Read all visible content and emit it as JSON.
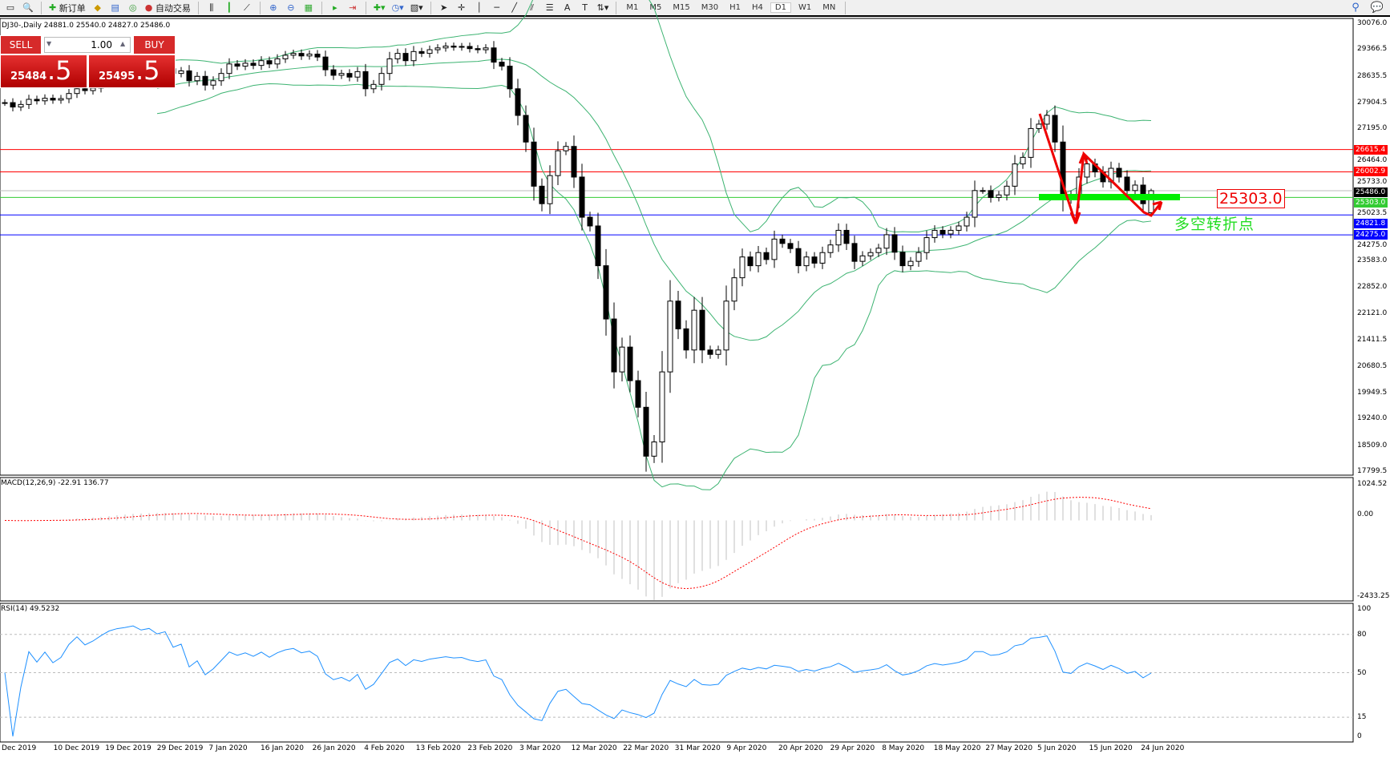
{
  "toolbar": {
    "new_order": "新订单",
    "auto_trading": "自动交易",
    "timeframes": [
      "M1",
      "M5",
      "M15",
      "M30",
      "H1",
      "H4",
      "D1",
      "W1",
      "MN"
    ],
    "active_timeframe": "D1"
  },
  "chart": {
    "title": "DJ30-,Daily  24881.0 25540.0 24827.0 25486.0",
    "symbol": "DJ30-",
    "period": "Daily"
  },
  "trade_panel": {
    "sell_label": "SELL",
    "buy_label": "BUY",
    "lot": "1.00",
    "sell_main": "25484",
    "sell_frac": ".5",
    "buy_main": "25495",
    "buy_frac": ".5"
  },
  "price_axis": [
    "30076.0",
    "29366.5",
    "28635.5",
    "27904.5",
    "27195.0",
    "26464.0",
    "25733.0",
    "25023.5",
    "24275.0",
    "23583.0",
    "22852.0",
    "22121.0",
    "21411.5",
    "20680.5",
    "19949.5",
    "19240.0",
    "18509.0",
    "17799.5"
  ],
  "levels": [
    {
      "price": "26615.4",
      "color": "#ff0000"
    },
    {
      "price": "26002.9",
      "color": "#ff0000"
    },
    {
      "price": "25486.0",
      "color": "#000000"
    },
    {
      "price": "25303.0",
      "color": "#33cc33"
    },
    {
      "price": "24821.8",
      "color": "#0000ff"
    },
    {
      "price": "24275.0",
      "color": "#0000ff"
    }
  ],
  "annotation": {
    "level_label": "25303.0",
    "note": "多空转折点"
  },
  "macd": {
    "label": "MACD(12,26,9) -22.91 136.77",
    "max": "1024.52",
    "zero": "0.00",
    "min": "-2433.25"
  },
  "rsi": {
    "label": "RSI(14) 49.5232",
    "ticks": [
      "100",
      "80",
      "50",
      "15",
      "0"
    ]
  },
  "dates": [
    "Dec 2019",
    "10 Dec 2019",
    "19 Dec 2019",
    "29 Dec 2019",
    "7 Jan 2020",
    "16 Jan 2020",
    "26 Jan 2020",
    "4 Feb 2020",
    "13 Feb 2020",
    "23 Feb 2020",
    "3 Mar 2020",
    "12 Mar 2020",
    "22 Mar 2020",
    "31 Mar 2020",
    "9 Apr 2020",
    "20 Apr 2020",
    "29 Apr 2020",
    "8 May 2020",
    "18 May 2020",
    "27 May 2020",
    "5 Jun 2020",
    "15 Jun 2020",
    "24 Jun 2020"
  ],
  "chart_data": {
    "type": "candlestick",
    "ylim": [
      17799.5,
      30076.0
    ],
    "closes": [
      27900,
      27780,
      27850,
      27990,
      27950,
      28020,
      27970,
      28010,
      28150,
      28280,
      28230,
      28300,
      28420,
      28560,
      28650,
      28700,
      28770,
      28740,
      28800,
      28760,
      28830,
      28700,
      28770,
      28500,
      28620,
      28380,
      28500,
      28700,
      28960,
      28900,
      28980,
      28920,
      29050,
      28960,
      29100,
      29200,
      29250,
      29180,
      29230,
      29150,
      28800,
      28650,
      28700,
      28600,
      28750,
      28280,
      28400,
      28700,
      29100,
      29250,
      29050,
      29300,
      29250,
      29350,
      29400,
      29450,
      29420,
      29440,
      29380,
      29350,
      29400,
      29010,
      28900,
      28280,
      27550,
      26820,
      25610,
      25130,
      25900,
      26580,
      26700,
      25860,
      24760,
      24520,
      23430,
      21970,
      20520,
      21200,
      20280,
      19550,
      18210,
      18600,
      20520,
      22460,
      21700,
      21120,
      22210,
      21120,
      21000,
      21120,
      22460,
      23100,
      23670,
      23430,
      23790,
      23600,
      24160,
      24040,
      23900,
      23430,
      23670,
      23500,
      23790,
      24000,
      24400,
      24040,
      23550,
      23700,
      23790,
      23910,
      24280,
      23800,
      23430,
      23550,
      23790,
      24200,
      24400,
      24300,
      24400,
      24520,
      24760,
      25490,
      25490,
      25300,
      25370,
      25610,
      26220,
      26400,
      27190,
      27310,
      27550,
      26820,
      25370,
      25250,
      25860,
      26220,
      26000,
      25730,
      26100,
      25860,
      25490,
      25640,
      25130,
      25486
    ],
    "last_bar": {
      "open": 24881.0,
      "high": 25540.0,
      "low": 24827.0,
      "close": 25486.0
    }
  }
}
